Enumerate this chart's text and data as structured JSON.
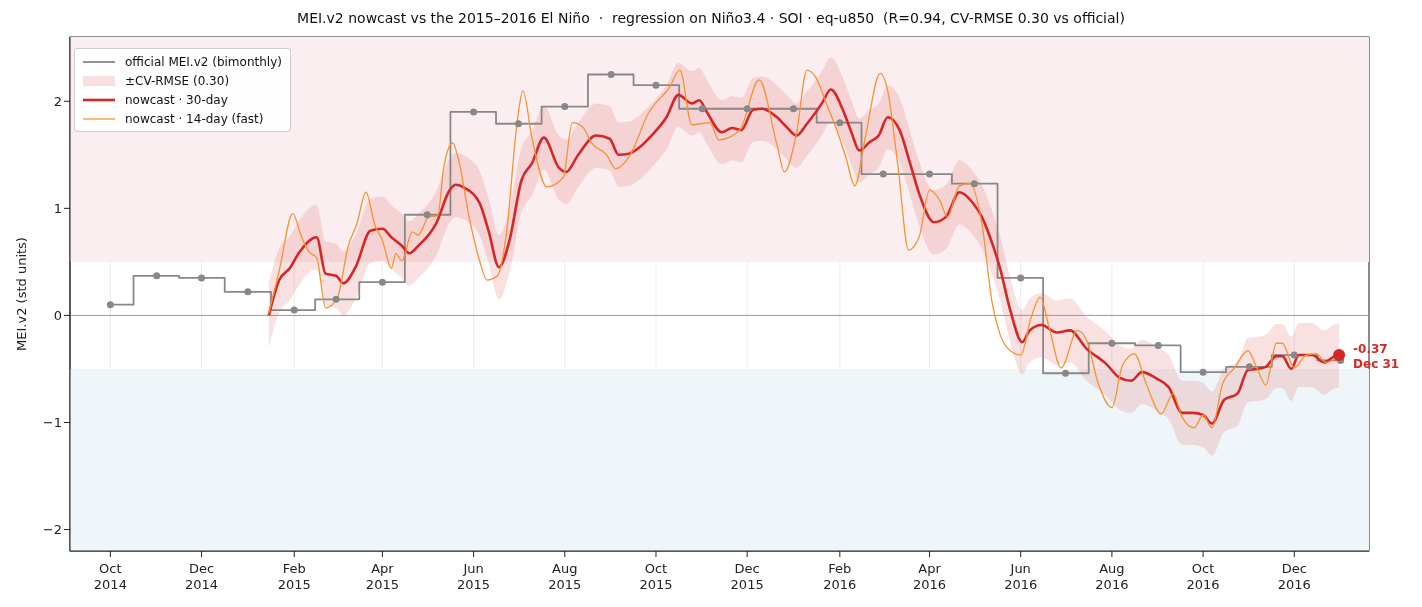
{
  "chart_data": {
    "type": "line",
    "title": "MEI.v2 nowcast vs the 2015–2016 El Niño  ·  regression on Niño3.4 · SOI · eq-u850  (R=0.94, CV-RMSE 0.30 vs official)",
    "ylabel": "MEI.v2 (std units)",
    "xlim": [
      "2014-09-04",
      "2017-01-20"
    ],
    "xticks": [
      {
        "value": "2014-10-01",
        "label": "Oct\n2014"
      },
      {
        "value": "2014-12-01",
        "label": "Dec\n2014"
      },
      {
        "value": "2015-02-01",
        "label": "Feb\n2015"
      },
      {
        "value": "2015-04-01",
        "label": "Apr\n2015"
      },
      {
        "value": "2015-06-01",
        "label": "Jun\n2015"
      },
      {
        "value": "2015-08-01",
        "label": "Aug\n2015"
      },
      {
        "value": "2015-10-01",
        "label": "Oct\n2015"
      },
      {
        "value": "2015-12-01",
        "label": "Dec\n2015"
      },
      {
        "value": "2016-02-01",
        "label": "Feb\n2016"
      },
      {
        "value": "2016-04-01",
        "label": "Apr\n2016"
      },
      {
        "value": "2016-06-01",
        "label": "Jun\n2016"
      },
      {
        "value": "2016-08-01",
        "label": "Aug\n2016"
      },
      {
        "value": "2016-10-01",
        "label": "Oct\n2016"
      },
      {
        "value": "2016-12-01",
        "label": "Dec\n2016"
      }
    ],
    "ylim": [
      -2.2,
      2.6
    ],
    "yticks": [
      {
        "value": -2,
        "label": "−2"
      },
      {
        "value": -1,
        "label": "−1"
      },
      0,
      1,
      2
    ],
    "grid": true,
    "legend": "top left",
    "bands": [
      {
        "axis": "y",
        "from": 0.5,
        "to": 2.6,
        "color": "#fbeef0"
      },
      {
        "axis": "y",
        "from": -2.2,
        "to": -0.5,
        "color": "#eff6f9"
      }
    ],
    "ref_lines": [
      {
        "axis": "y",
        "value": 0,
        "color": "#999999"
      }
    ],
    "annotations": [
      "±CV-RMSE (0.30)",
      {
        "text": "-0.37\nDec 31",
        "x": "2016-12-31",
        "y": -0.37
      }
    ],
    "series": [
      {
        "name": "official MEI.v2 (bimonthly)",
        "type": "step",
        "color": "#888888",
        "marker": "circle",
        "x": [
          "2014-10-01",
          "2014-11-01",
          "2014-12-01",
          "2015-01-01",
          "2015-02-01",
          "2015-03-01",
          "2015-04-01",
          "2015-05-01",
          "2015-06-01",
          "2015-07-01",
          "2015-08-01",
          "2015-09-01",
          "2015-10-01",
          "2015-11-01",
          "2015-12-01",
          "2016-01-01",
          "2016-02-01",
          "2016-03-01",
          "2016-04-01",
          "2016-05-01",
          "2016-06-01",
          "2016-07-01",
          "2016-08-01",
          "2016-09-01",
          "2016-10-01",
          "2016-11-01",
          "2016-12-01",
          "2017-01-01"
        ],
        "values": [
          0.1,
          0.37,
          0.35,
          0.22,
          0.05,
          0.15,
          0.31,
          0.94,
          1.9,
          1.79,
          1.95,
          2.25,
          2.15,
          1.93,
          1.93,
          1.93,
          1.8,
          1.32,
          1.32,
          1.23,
          0.35,
          -0.54,
          -0.26,
          -0.28,
          -0.53,
          -0.48,
          -0.37,
          -0.42
        ]
      },
      {
        "name": "nowcast · 30-day",
        "type": "line",
        "color": "#d62728",
        "marker": "none",
        "x": [
          "2015-01-15",
          "2015-01-22",
          "2015-01-29",
          "2015-02-04",
          "2015-02-16",
          "2015-02-22",
          "2015-03-01",
          "2015-03-06",
          "2015-03-14",
          "2015-03-24",
          "2015-04-01",
          "2015-04-07",
          "2015-04-14",
          "2015-04-19",
          "2015-04-25",
          "2015-05-07",
          "2015-05-16",
          "2015-05-20",
          "2015-05-26",
          "2015-06-05",
          "2015-06-11",
          "2015-06-18",
          "2015-06-25",
          "2015-07-03",
          "2015-07-10",
          "2015-07-18",
          "2015-07-28",
          "2015-08-02",
          "2015-08-10",
          "2015-08-22",
          "2015-08-31",
          "2015-09-06",
          "2015-09-13",
          "2015-09-20",
          "2015-09-28",
          "2015-10-08",
          "2015-10-16",
          "2015-10-25",
          "2015-10-30",
          "2015-11-04",
          "2015-11-14",
          "2015-11-21",
          "2015-11-27",
          "2015-12-05",
          "2015-12-11",
          "2015-12-21",
          "2015-12-28",
          "2016-01-03",
          "2016-01-10",
          "2016-01-20",
          "2016-01-26",
          "2016-02-03",
          "2016-02-09",
          "2016-02-14",
          "2016-02-21",
          "2016-02-27",
          "2016-03-04",
          "2016-03-12",
          "2016-03-19",
          "2016-03-25",
          "2016-04-04",
          "2016-04-12",
          "2016-04-21",
          "2016-04-30",
          "2016-05-06",
          "2016-05-13",
          "2016-05-18",
          "2016-05-25",
          "2016-06-02",
          "2016-06-07",
          "2016-06-15",
          "2016-06-25",
          "2016-07-04",
          "2016-07-15",
          "2016-07-28",
          "2016-08-06",
          "2016-08-14",
          "2016-08-21",
          "2016-08-31",
          "2016-09-08",
          "2016-09-17",
          "2016-09-24",
          "2016-10-01",
          "2016-10-07",
          "2016-10-15",
          "2016-10-24",
          "2016-10-31",
          "2016-11-06",
          "2016-11-12",
          "2016-11-19",
          "2016-11-23",
          "2016-11-29",
          "2016-12-04",
          "2016-12-13",
          "2016-12-21",
          "2016-12-27",
          "2016-12-31"
        ],
        "values": [
          0.0,
          0.33,
          0.44,
          0.58,
          0.73,
          0.39,
          0.37,
          0.3,
          0.45,
          0.79,
          0.81,
          0.73,
          0.65,
          0.58,
          0.65,
          0.86,
          1.17,
          1.22,
          1.19,
          1.05,
          0.79,
          0.45,
          0.7,
          1.26,
          1.42,
          1.66,
          1.38,
          1.34,
          1.5,
          1.68,
          1.65,
          1.5,
          1.51,
          1.57,
          1.68,
          1.85,
          2.06,
          1.98,
          2.01,
          1.9,
          1.71,
          1.75,
          1.73,
          1.92,
          1.93,
          1.85,
          1.75,
          1.68,
          1.79,
          1.98,
          2.11,
          1.92,
          1.7,
          1.54,
          1.62,
          1.68,
          1.85,
          1.73,
          1.42,
          1.14,
          0.87,
          0.92,
          1.15,
          1.05,
          0.92,
          0.67,
          0.45,
          0.05,
          -0.25,
          -0.14,
          -0.09,
          -0.16,
          -0.14,
          -0.31,
          -0.45,
          -0.58,
          -0.61,
          -0.53,
          -0.59,
          -0.67,
          -0.91,
          -0.91,
          -0.93,
          -1.01,
          -0.79,
          -0.73,
          -0.51,
          -0.5,
          -0.48,
          -0.38,
          -0.38,
          -0.5,
          -0.37,
          -0.37,
          -0.44,
          -0.39,
          -0.37
        ],
        "lower": [
          -0.3,
          0.03,
          0.14,
          0.28,
          0.43,
          0.09,
          0.07,
          0.0,
          0.15,
          0.49,
          0.51,
          0.43,
          0.35,
          0.28,
          0.35,
          0.56,
          0.87,
          0.92,
          0.89,
          0.75,
          0.49,
          0.15,
          0.4,
          0.96,
          1.12,
          1.36,
          1.08,
          1.04,
          1.2,
          1.38,
          1.35,
          1.2,
          1.21,
          1.27,
          1.38,
          1.55,
          1.76,
          1.68,
          1.71,
          1.6,
          1.41,
          1.45,
          1.43,
          1.62,
          1.63,
          1.55,
          1.45,
          1.38,
          1.49,
          1.68,
          1.81,
          1.62,
          1.4,
          1.24,
          1.32,
          1.38,
          1.55,
          1.43,
          1.12,
          0.84,
          0.57,
          0.62,
          0.85,
          0.75,
          0.62,
          0.37,
          0.15,
          -0.25,
          -0.55,
          -0.44,
          -0.39,
          -0.46,
          -0.44,
          -0.61,
          -0.75,
          -0.88,
          -0.91,
          -0.83,
          -0.89,
          -0.97,
          -1.21,
          -1.21,
          -1.23,
          -1.31,
          -1.09,
          -1.03,
          -0.81,
          -0.8,
          -0.78,
          -0.68,
          -0.68,
          -0.8,
          -0.67,
          -0.67,
          -0.74,
          -0.69,
          -0.67
        ],
        "upper": [
          0.3,
          0.63,
          0.74,
          0.88,
          1.03,
          0.69,
          0.67,
          0.6,
          0.75,
          1.09,
          1.11,
          1.03,
          0.95,
          0.88,
          0.95,
          1.16,
          1.47,
          1.52,
          1.49,
          1.35,
          1.09,
          0.75,
          1.0,
          1.56,
          1.72,
          1.96,
          1.68,
          1.64,
          1.8,
          1.98,
          1.95,
          1.8,
          1.81,
          1.87,
          1.98,
          2.15,
          2.36,
          2.28,
          2.31,
          2.2,
          2.01,
          2.05,
          2.03,
          2.22,
          2.23,
          2.15,
          2.05,
          1.98,
          2.09,
          2.28,
          2.41,
          2.22,
          2.0,
          1.84,
          1.92,
          1.98,
          2.15,
          2.03,
          1.72,
          1.44,
          1.17,
          1.22,
          1.45,
          1.35,
          1.22,
          0.97,
          0.75,
          0.35,
          0.05,
          0.16,
          0.21,
          0.14,
          0.16,
          -0.01,
          -0.15,
          -0.28,
          -0.31,
          -0.23,
          -0.29,
          -0.37,
          -0.61,
          -0.61,
          -0.63,
          -0.71,
          -0.49,
          -0.43,
          -0.21,
          -0.2,
          -0.18,
          -0.08,
          -0.08,
          -0.2,
          -0.07,
          -0.07,
          -0.14,
          -0.09,
          -0.07
        ]
      },
      {
        "name": "nowcast · 14-day (fast)",
        "type": "line",
        "color": "#f59331",
        "marker": "none",
        "x": [
          "2015-01-15",
          "2015-01-22",
          "2015-01-31",
          "2015-02-06",
          "2015-02-11",
          "2015-02-16",
          "2015-02-22",
          "2015-03-02",
          "2015-03-09",
          "2015-03-15",
          "2015-03-21",
          "2015-03-27",
          "2015-04-01",
          "2015-04-07",
          "2015-04-10",
          "2015-04-14",
          "2015-04-21",
          "2015-04-25",
          "2015-05-02",
          "2015-05-08",
          "2015-05-12",
          "2015-05-18",
          "2015-05-22",
          "2015-05-29",
          "2015-06-05",
          "2015-06-10",
          "2015-06-17",
          "2015-06-23",
          "2015-06-30",
          "2015-07-04",
          "2015-07-10",
          "2015-07-20",
          "2015-07-31",
          "2015-08-06",
          "2015-08-13",
          "2015-08-19",
          "2015-08-29",
          "2015-09-04",
          "2015-09-13",
          "2015-09-26",
          "2015-10-10",
          "2015-10-17",
          "2015-10-25",
          "2015-11-06",
          "2015-11-12",
          "2015-11-26",
          "2015-12-09",
          "2015-12-21",
          "2015-12-26",
          "2016-01-03",
          "2016-01-10",
          "2016-01-16",
          "2016-01-23",
          "2016-01-30",
          "2016-02-05",
          "2016-02-11",
          "2016-02-18",
          "2016-02-28",
          "2016-03-04",
          "2016-03-11",
          "2016-03-18",
          "2016-03-25",
          "2016-04-01",
          "2016-04-08",
          "2016-04-13",
          "2016-04-21",
          "2016-04-28",
          "2016-05-06",
          "2016-05-13",
          "2016-05-18",
          "2016-05-25",
          "2016-06-01",
          "2016-06-08",
          "2016-06-14",
          "2016-06-20",
          "2016-06-28",
          "2016-07-09",
          "2016-07-15",
          "2016-07-23",
          "2016-08-01",
          "2016-08-08",
          "2016-08-16",
          "2016-08-24",
          "2016-09-03",
          "2016-09-11",
          "2016-09-17",
          "2016-09-25",
          "2016-10-01",
          "2016-10-07",
          "2016-10-14",
          "2016-10-22",
          "2016-10-31",
          "2016-11-06",
          "2016-11-12",
          "2016-11-19",
          "2016-11-23",
          "2016-12-01",
          "2016-12-09",
          "2016-12-16",
          "2016-12-22",
          "2016-12-29"
        ],
        "values": [
          0.02,
          0.42,
          0.95,
          0.73,
          0.59,
          0.54,
          0.07,
          0.17,
          0.64,
          0.86,
          1.15,
          0.84,
          0.7,
          0.44,
          0.58,
          0.51,
          0.78,
          0.75,
          0.92,
          0.93,
          1.38,
          1.61,
          1.45,
          0.92,
          0.51,
          0.33,
          0.37,
          0.77,
          1.79,
          2.1,
          1.66,
          1.2,
          1.29,
          1.8,
          1.76,
          1.61,
          1.5,
          1.37,
          1.48,
          1.89,
          2.13,
          2.29,
          1.78,
          1.8,
          1.64,
          1.73,
          2.2,
          1.59,
          1.34,
          1.7,
          2.29,
          2.22,
          1.98,
          1.73,
          1.48,
          1.21,
          1.66,
          2.26,
          2.1,
          1.38,
          0.61,
          0.73,
          1.17,
          1.07,
          0.92,
          1.21,
          1.23,
          0.86,
          0.11,
          -0.17,
          -0.33,
          -0.37,
          -0.02,
          0.17,
          -0.11,
          -0.49,
          -0.14,
          -0.23,
          -0.64,
          -0.86,
          -0.47,
          -0.36,
          -0.64,
          -0.92,
          -0.73,
          -0.95,
          -1.05,
          -0.93,
          -1.05,
          -0.64,
          -0.49,
          -0.33,
          -0.49,
          -0.65,
          -0.26,
          -0.26,
          -0.49,
          -0.37,
          -0.36,
          -0.44,
          -0.39
        ]
      }
    ]
  }
}
